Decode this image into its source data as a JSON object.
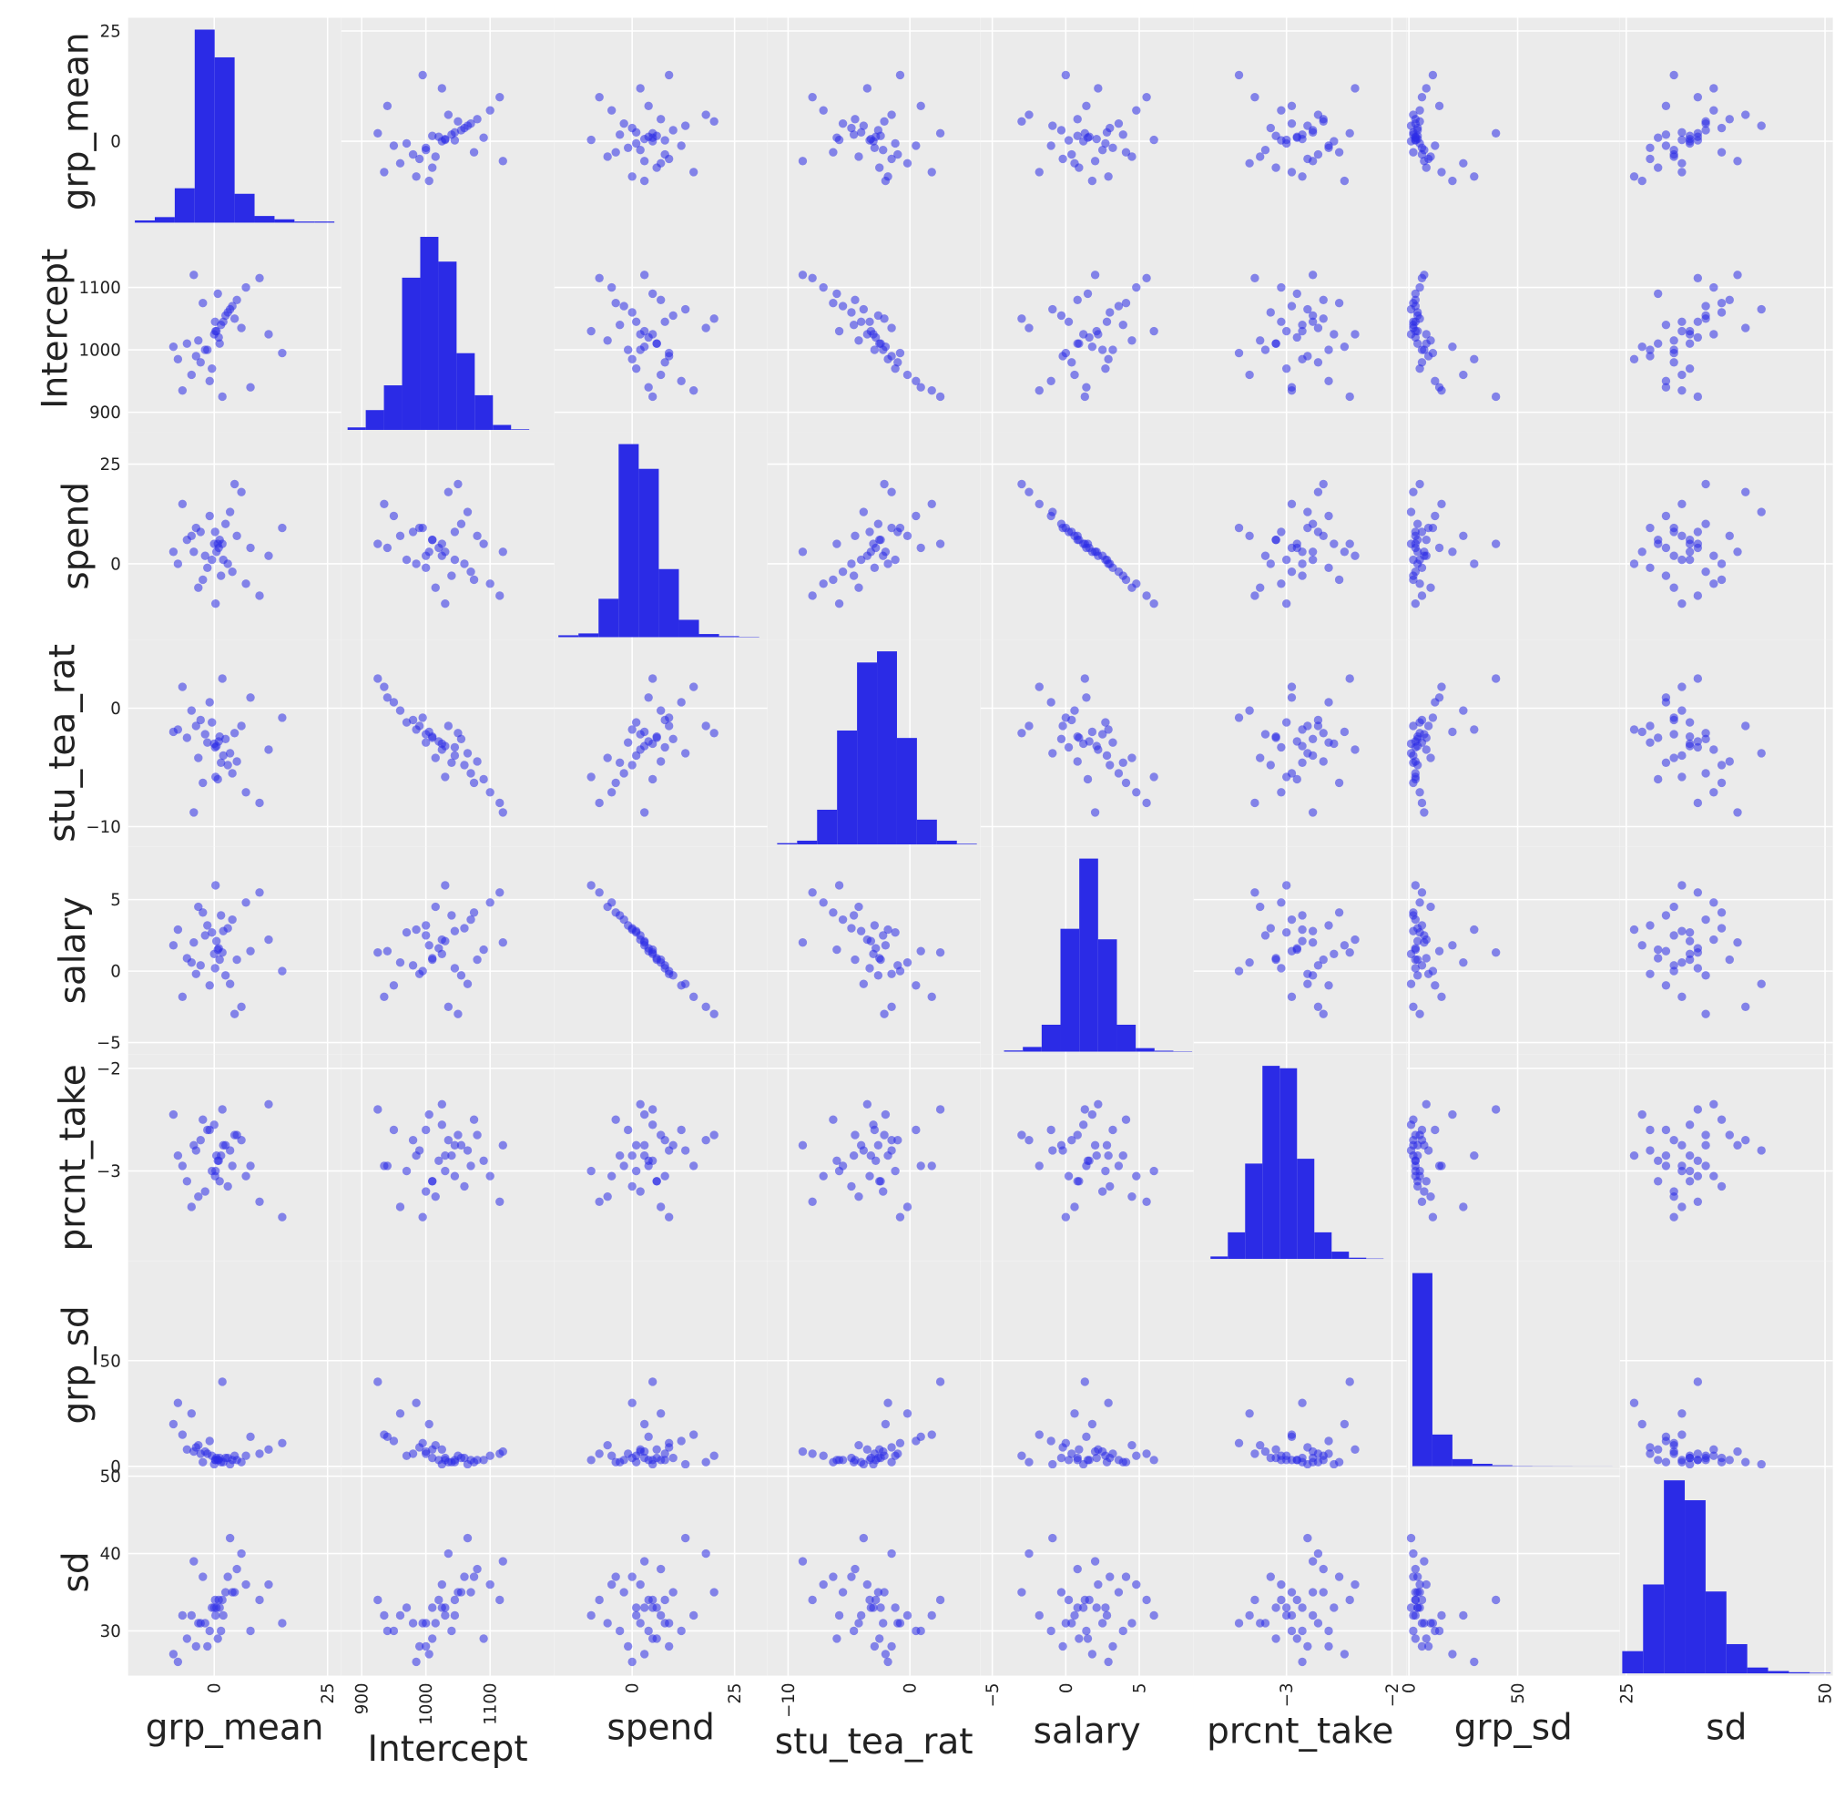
{
  "chart_data": {
    "type": "scatter_matrix",
    "color": "#2b2be6",
    "grid": true,
    "variables": [
      {
        "name": "grp_mean",
        "lim": [
          -19,
          28
        ],
        "xticks": [
          0,
          25
        ],
        "yticks": [
          0,
          25
        ],
        "values": [
          0.5,
          -3,
          4,
          -6,
          2,
          7,
          -1,
          1,
          -4,
          3,
          0,
          -2,
          5,
          -7,
          1.5,
          10,
          -9,
          2.5,
          -0.5,
          6,
          -3.5,
          0.8,
          12,
          -5,
          3.5,
          -1.5,
          0.2,
          8,
          -2.5,
          1.2,
          -8,
          4.5,
          0.3,
          -4.5,
          15,
          1.8
        ],
        "hist": {
          "bins": [
            -17.5,
            -13.1,
            -8.7,
            -4.3,
            0.1,
            4.5,
            8.9,
            13.3,
            17.7,
            22.1,
            26.5
          ],
          "counts": [
            20,
            50,
            310,
            1740,
            1490,
            260,
            60,
            30,
            10,
            10
          ]
        }
      },
      {
        "name": "Intercept",
        "lim": [
          868,
          1200
        ],
        "xticks": [
          900,
          1000,
          1100
        ],
        "yticks": [
          900,
          1000,
          1100
        ],
        "values": [
          1030,
          980,
          1070,
          1010,
          1045,
          1100,
          950,
          1020,
          990,
          1060,
          1025,
          1000,
          1080,
          935,
          1040,
          1115,
          1005,
          1055,
          970,
          1035,
          1015,
          1090,
          1025,
          960,
          1065,
          1000,
          1045,
          940,
          1075,
          1010,
          985,
          1050,
          1030,
          1120,
          995,
          925
        ],
        "hist": {
          "bins": [
            878,
            906.3,
            934.6,
            962.9,
            991.2,
            1019.5,
            1047.8,
            1076.1,
            1104.4,
            1132.7,
            1161
          ],
          "counts": [
            20,
            160,
            360,
            1230,
            1560,
            1360,
            620,
            280,
            40,
            5
          ]
        }
      },
      {
        "name": "spend",
        "lim": [
          -19,
          33
        ],
        "xticks": [
          0,
          25
        ],
        "yticks": [
          0,
          25
        ],
        "values": [
          3,
          8,
          -2,
          6,
          1,
          -5,
          12,
          4,
          9,
          0,
          5,
          2,
          7,
          15,
          -3,
          -8,
          3,
          10,
          1,
          18,
          -6,
          5,
          2,
          7,
          13,
          -1,
          8,
          4,
          -4,
          6,
          0,
          20,
          -10,
          3,
          9,
          5
        ],
        "hist": {
          "bins": [
            -18,
            -13.1,
            -8.2,
            -3.3,
            1.6,
            6.5,
            11.4,
            16.3,
            21.2,
            26.1,
            31
          ],
          "counts": [
            15,
            30,
            310,
            1560,
            1360,
            550,
            140,
            25,
            8,
            3
          ]
        }
      },
      {
        "name": "stu_tea_rat",
        "lim": [
          -11.7,
          5.8
        ],
        "xticks": [
          {
            "value": -10,
            "label": "−10"
          },
          0
        ],
        "yticks": [
          {
            "value": -10,
            "label": "−10"
          },
          0
        ],
        "values": [
          -3.2,
          -1.0,
          -5.5,
          -2.5,
          -4.0,
          -7.1,
          0.5,
          -2.8,
          -1.5,
          -4.8,
          -3.0,
          -2.2,
          -4.5,
          1.8,
          -4.6,
          -8.0,
          -2.0,
          -2.6,
          -1.2,
          -1.5,
          -4.2,
          -6.0,
          -3.5,
          -0.2,
          -3.8,
          -2.9,
          -3.3,
          0.9,
          -6.3,
          -2.4,
          -1.8,
          -2.1,
          -5.8,
          -8.8,
          -0.8,
          2.5
        ],
        "hist": {
          "bins": [
            -10.9,
            -9.26,
            -7.62,
            -5.98,
            -4.34,
            -2.7,
            -1.06,
            0.58,
            2.22,
            3.86,
            5.5
          ],
          "counts": [
            10,
            30,
            280,
            920,
            1470,
            1560,
            860,
            200,
            30,
            5
          ]
        }
      },
      {
        "name": "salary",
        "lim": [
          -5.8,
          8.7
        ],
        "xticks": [
          {
            "value": -5,
            "label": "−5"
          },
          0,
          5
        ],
        "yticks": [
          {
            "value": -5,
            "label": "−5"
          },
          0,
          5
        ],
        "values": [
          2.1,
          0.4,
          3.6,
          0.9,
          2.8,
          4.8,
          -1.0,
          1.6,
          -0.2,
          3.0,
          1.2,
          2.5,
          0.8,
          -1.8,
          3.9,
          5.5,
          1.8,
          -0.3,
          2.7,
          -2.5,
          4.5,
          1.5,
          2.2,
          0.6,
          -0.9,
          3.2,
          0.2,
          1.4,
          4.1,
          0.8,
          2.9,
          -3.0,
          6.0,
          2.0,
          0.0,
          1.3
        ],
        "hist": {
          "bins": [
            -4.2,
            -2.92,
            -1.64,
            -0.36,
            0.92,
            2.2,
            3.48,
            4.76,
            6.04,
            7.32,
            8.6
          ],
          "counts": [
            10,
            40,
            230,
            1050,
            1650,
            960,
            230,
            30,
            8,
            3
          ]
        }
      },
      {
        "name": "prcnt_take",
        "lim": [
          -3.88,
          -1.86
        ],
        "xticks": [
          {
            "value": -3,
            "label": "−3"
          },
          {
            "value": -2,
            "label": "−2"
          }
        ],
        "yticks": [
          {
            "value": -3,
            "label": "−3"
          },
          {
            "value": -2,
            "label": "−2"
          }
        ],
        "values": [
          -2.85,
          -2.7,
          -2.95,
          -3.1,
          -2.75,
          -3.05,
          -2.6,
          -2.9,
          -2.8,
          -3.15,
          -2.55,
          -3.2,
          -2.65,
          -2.95,
          -2.85,
          -3.3,
          -2.45,
          -2.75,
          -3.0,
          -2.7,
          -3.25,
          -2.9,
          -2.35,
          -3.35,
          -2.8,
          -2.6,
          -3.05,
          -2.95,
          -2.5,
          -3.1,
          -2.85,
          -2.65,
          -3.0,
          -2.75,
          -3.45,
          -2.4
        ],
        "hist": {
          "bins": [
            -3.72,
            -3.556,
            -3.392,
            -3.228,
            -3.064,
            -2.9,
            -2.736,
            -2.572,
            -2.408,
            -2.244,
            -2.08
          ],
          "counts": [
            20,
            220,
            790,
            1600,
            1580,
            830,
            220,
            60,
            10,
            3
          ]
        }
      },
      {
        "name": "grp_sd",
        "lim": [
          -1,
          97
        ],
        "xticks": [
          0,
          50
        ],
        "yticks": [
          0,
          50
        ],
        "values": [
          4,
          6,
          3,
          8,
          2,
          5,
          12,
          3,
          9,
          4,
          1,
          7,
          3,
          15,
          2,
          6,
          20,
          4,
          5,
          2,
          10,
          3,
          8,
          25,
          1,
          6,
          3,
          14,
          2,
          4,
          30,
          5,
          3,
          7,
          11,
          40
        ],
        "hist": {
          "bins": [
            1.6,
            10.8,
            20,
            29.2,
            38.4,
            47.6,
            56.8,
            66,
            75.2,
            84.4,
            93.6
          ],
          "counts": [
            3300,
            540,
            120,
            40,
            15,
            5,
            3,
            2,
            1,
            1
          ]
        }
      },
      {
        "name": "sd",
        "lim": [
          24.2,
          51
        ],
        "xticks": [
          25,
          50
        ],
        "yticks": [
          30,
          40,
          50
        ],
        "values": [
          33,
          31,
          35,
          29,
          32,
          36,
          30,
          34,
          28,
          37,
          33,
          31,
          38,
          32,
          30,
          34,
          27,
          35,
          33,
          40,
          31,
          29,
          36,
          32,
          42,
          28,
          34,
          30,
          37,
          33,
          26,
          35,
          32,
          39,
          31,
          34
        ],
        "hist": {
          "bins": [
            24.5,
            27.12,
            29.74,
            32.36,
            34.98,
            37.6,
            40.22,
            42.84,
            45.46,
            48.08,
            50.7
          ],
          "counts": [
            190,
            760,
            1650,
            1480,
            700,
            250,
            50,
            20,
            10,
            5
          ]
        }
      }
    ]
  }
}
